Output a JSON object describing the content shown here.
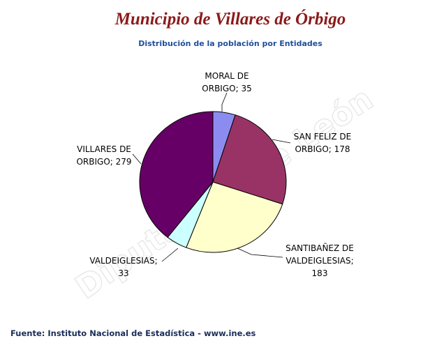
{
  "watermark": "Diputación de León",
  "footer": {
    "source": "Fuente: Instituto Nacional de Estadística - www.ine.es"
  },
  "chart_data": {
    "type": "pie",
    "title": "Municipio de Villares de Órbigo",
    "subtitle": "Distribución de la población por Entidades",
    "legend": "none",
    "slices": [
      {
        "name": "MORAL DE ORBIGO",
        "value": 35,
        "label_lines": [
          "MORAL DE",
          "ORBIGO; 35"
        ],
        "color": "#8c8cf0"
      },
      {
        "name": "SAN FELIZ DE ORBIGO",
        "value": 178,
        "label_lines": [
          "SAN FELIZ DE",
          "ORBIGO; 178"
        ],
        "color": "#993366"
      },
      {
        "name": "SANTIBAÑEZ DE VALDEIGLESIAS",
        "value": 183,
        "label_lines": [
          "SANTIBAÑEZ DE",
          "VALDEIGLESIAS;",
          "183"
        ],
        "color": "#ffffcc"
      },
      {
        "name": "VALDEIGLESIAS",
        "value": 33,
        "label_lines": [
          "VALDEIGLESIAS;",
          "33"
        ],
        "color": "#ccffff"
      },
      {
        "name": "VILLARES DE ORBIGO",
        "value": 279,
        "label_lines": [
          "VILLARES DE",
          "ORBIGO; 279"
        ],
        "color": "#660066"
      }
    ]
  }
}
